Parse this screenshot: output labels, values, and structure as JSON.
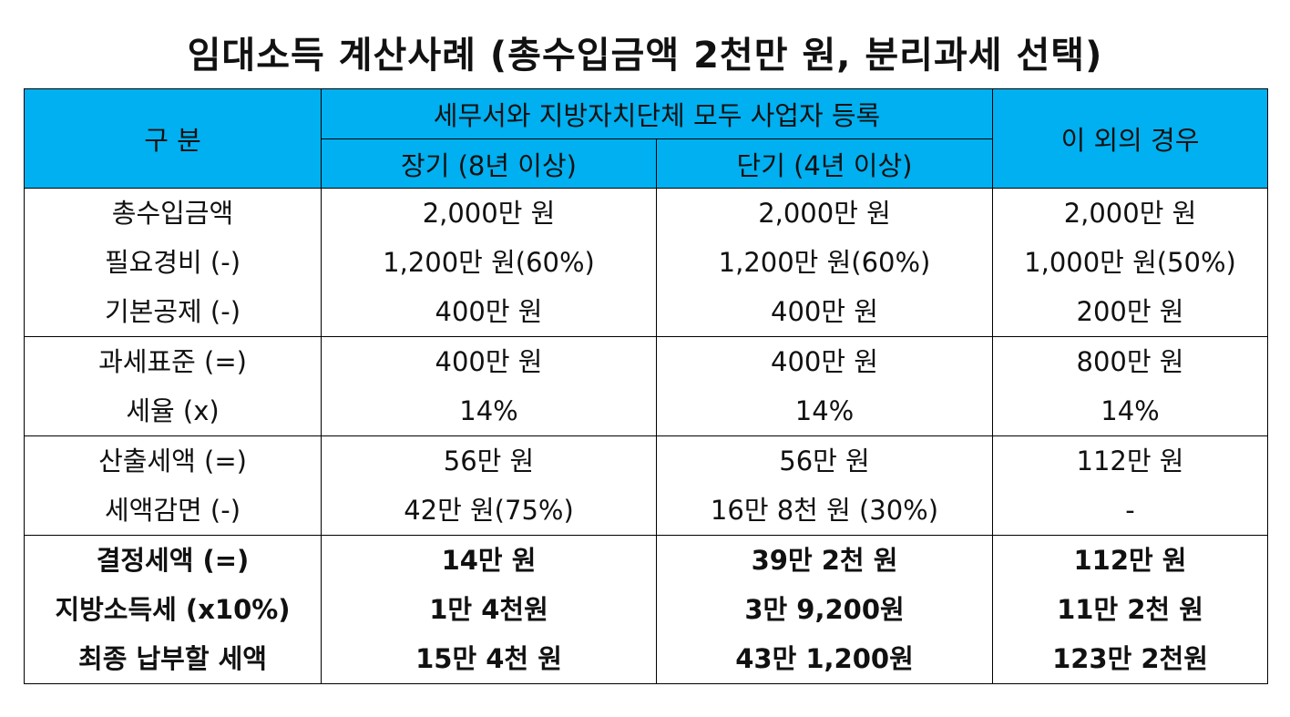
{
  "title": "임대소득 계산사례 (총수입금액 2천만 원, 분리과세 선택)",
  "header": {
    "category": "구 분",
    "registered_group": "세무서와 지방자치단체 모두 사업자 등록",
    "long_term": "장기 (8년 이상)",
    "short_term": "단기 (4년 이상)",
    "other": "이 외의 경우"
  },
  "groups": [
    {
      "labels": [
        "총수입금액",
        "필요경비 (-)",
        "기본공제 (-)"
      ],
      "long": [
        "2,000만 원",
        "1,200만 원(60%)",
        "400만 원"
      ],
      "short": [
        "2,000만 원",
        "1,200만 원(60%)",
        "400만 원"
      ],
      "other": [
        "2,000만 원",
        "1,000만 원(50%)",
        "200만 원"
      ]
    },
    {
      "labels": [
        "과세표준 (=)",
        "세율 (x)"
      ],
      "long": [
        "400만 원",
        "14%"
      ],
      "short": [
        "400만 원",
        "14%"
      ],
      "other": [
        "800만 원",
        "14%"
      ]
    },
    {
      "labels": [
        "산출세액 (=)",
        "세액감면 (-)"
      ],
      "long": [
        "56만 원",
        "42만 원(75%)"
      ],
      "short": [
        "56만 원",
        "16만 8천 원 (30%)"
      ],
      "other": [
        "112만 원",
        "-"
      ]
    },
    {
      "labels": [
        "결정세액 (=)",
        "지방소득세 (x10%)",
        "최종 납부할 세액"
      ],
      "long": [
        "14만 원",
        "1만 4천원",
        "15만 4천 원"
      ],
      "short": [
        "39만 2천 원",
        "3만 9,200원",
        "43만 1,200원"
      ],
      "other": [
        "112만 원",
        "11만 2천 원",
        "123만 2천원"
      ]
    }
  ],
  "colors": {
    "header_bg": "#00b0f0",
    "border": "#000000"
  }
}
